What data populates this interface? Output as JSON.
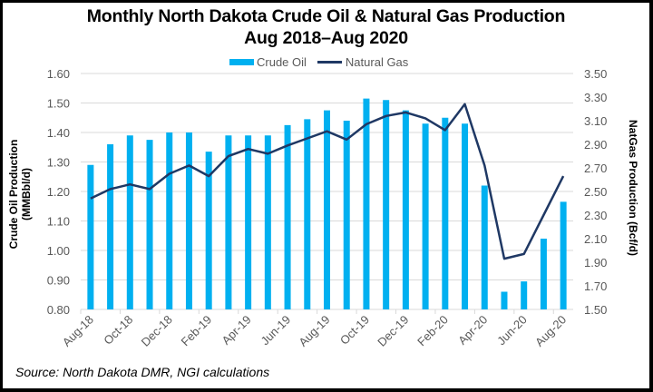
{
  "chart_data": {
    "type": "bar",
    "title": "Monthly North Dakota Crude Oil & Natural Gas Production",
    "subtitle": "Aug 2018–Aug 2020",
    "xlabel": "",
    "ylabel": "Crude Oil Production (MMBbl/d)",
    "y2label": "NatGas Production (Bcf/d)",
    "ylim": [
      0.8,
      1.6
    ],
    "y2lim": [
      1.5,
      3.5
    ],
    "yticks": [
      "0.80",
      "0.90",
      "1.00",
      "1.10",
      "1.20",
      "1.30",
      "1.40",
      "1.50",
      "1.60"
    ],
    "y2ticks": [
      "1.50",
      "1.70",
      "1.90",
      "2.10",
      "2.30",
      "2.50",
      "2.70",
      "2.90",
      "3.10",
      "3.30",
      "3.50"
    ],
    "grid": true,
    "legend_position": "top",
    "categories": [
      "Aug-18",
      "Sep-18",
      "Oct-18",
      "Nov-18",
      "Dec-18",
      "Jan-19",
      "Feb-19",
      "Mar-19",
      "Apr-19",
      "May-19",
      "Jun-19",
      "Jul-19",
      "Aug-19",
      "Sep-19",
      "Oct-19",
      "Nov-19",
      "Dec-19",
      "Jan-20",
      "Feb-20",
      "Mar-20",
      "Apr-20",
      "May-20",
      "Jun-20",
      "Jul-20",
      "Aug-20"
    ],
    "x_tick_labels": [
      "Aug-18",
      "Oct-18",
      "Dec-18",
      "Feb-19",
      "Apr-19",
      "Jun-19",
      "Aug-19",
      "Oct-19",
      "Dec-19",
      "Feb-20",
      "Apr-20",
      "Jun-20",
      "Aug-20"
    ],
    "series": [
      {
        "name": "Crude Oil",
        "type": "bar",
        "axis": "left",
        "color": "#00B0F0",
        "values": [
          1.29,
          1.36,
          1.39,
          1.375,
          1.4,
          1.4,
          1.335,
          1.39,
          1.39,
          1.39,
          1.425,
          1.445,
          1.475,
          1.44,
          1.515,
          1.51,
          1.475,
          1.43,
          1.45,
          1.43,
          1.22,
          0.86,
          0.895,
          1.04,
          1.165
        ]
      },
      {
        "name": "Natural Gas",
        "type": "line",
        "axis": "right",
        "color": "#1F3864",
        "values": [
          2.44,
          2.52,
          2.56,
          2.52,
          2.65,
          2.72,
          2.63,
          2.8,
          2.86,
          2.82,
          2.89,
          2.95,
          3.01,
          2.94,
          3.07,
          3.14,
          3.17,
          3.12,
          3.02,
          3.24,
          2.72,
          1.93,
          1.97,
          2.3,
          2.63
        ]
      }
    ]
  },
  "title_line1": "Monthly North Dakota Crude Oil & Natural Gas Production",
  "title_line2": "Aug 2018–Aug 2020",
  "legend": {
    "oil": "Crude Oil",
    "gas": "Natural Gas"
  },
  "colors": {
    "oil": "#00B0F0",
    "gas": "#1F3864",
    "grid": "#D9D9D9",
    "tick_text": "#595959"
  },
  "ylabel_left": "Crude Oil Production (MMBbl/d)",
  "ylabel_right": "NatGas Production (Bcf/d)",
  "source": "Source: North Dakota DMR, NGI calculations"
}
